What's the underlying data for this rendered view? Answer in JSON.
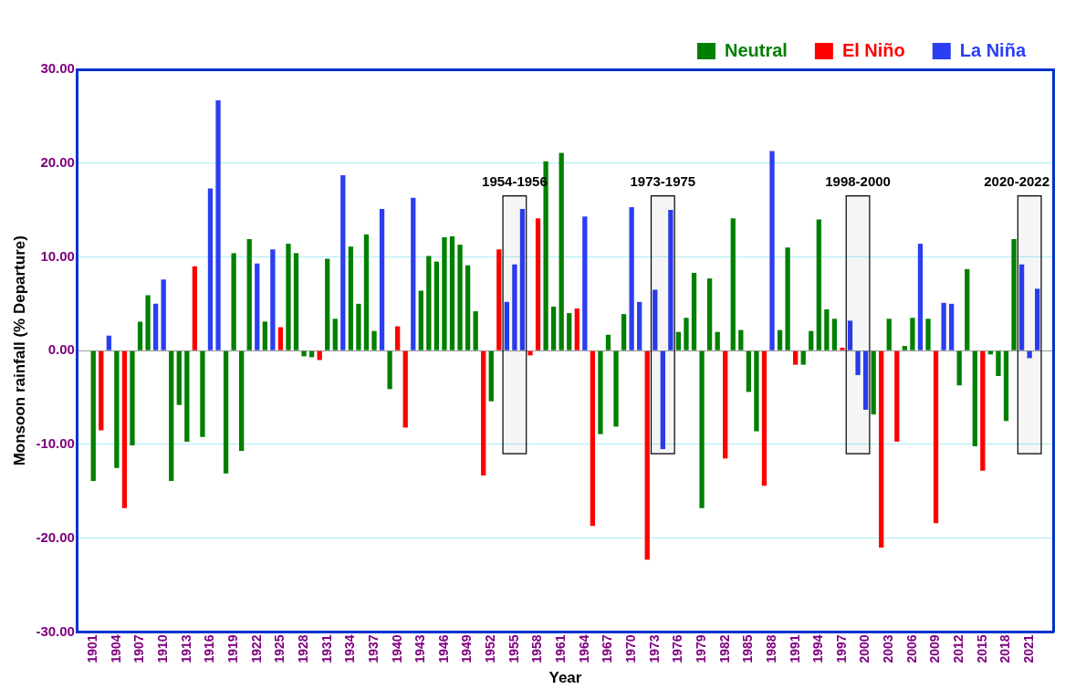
{
  "chart_data": {
    "type": "bar",
    "xlabel": "Year",
    "ylabel": "Monsoon rainfall (% Departure)",
    "x": [
      1901,
      1902,
      1903,
      1904,
      1905,
      1906,
      1907,
      1908,
      1909,
      1910,
      1911,
      1912,
      1913,
      1914,
      1915,
      1916,
      1917,
      1918,
      1919,
      1920,
      1921,
      1922,
      1923,
      1924,
      1925,
      1926,
      1927,
      1928,
      1929,
      1930,
      1931,
      1932,
      1933,
      1934,
      1935,
      1936,
      1937,
      1938,
      1939,
      1940,
      1941,
      1942,
      1943,
      1944,
      1945,
      1946,
      1947,
      1948,
      1949,
      1950,
      1951,
      1952,
      1953,
      1954,
      1955,
      1956,
      1957,
      1958,
      1959,
      1960,
      1961,
      1962,
      1963,
      1964,
      1965,
      1966,
      1967,
      1968,
      1969,
      1970,
      1971,
      1972,
      1973,
      1974,
      1975,
      1976,
      1977,
      1978,
      1979,
      1980,
      1981,
      1982,
      1983,
      1984,
      1985,
      1986,
      1987,
      1988,
      1989,
      1990,
      1991,
      1992,
      1993,
      1994,
      1995,
      1996,
      1997,
      1998,
      1999,
      2000,
      2001,
      2002,
      2003,
      2004,
      2005,
      2006,
      2007,
      2008,
      2009,
      2010,
      2011,
      2012,
      2013,
      2014,
      2015,
      2016,
      2017,
      2018,
      2019,
      2020,
      2021,
      2022
    ],
    "series": [
      {
        "name": "Neutral",
        "color": "#008000",
        "values": [
          -13.9,
          null,
          null,
          -12.5,
          null,
          -10.1,
          3.1,
          5.9,
          null,
          null,
          -13.9,
          -5.8,
          -9.7,
          null,
          -9.2,
          null,
          null,
          -13.1,
          10.4,
          -10.7,
          11.9,
          null,
          3.1,
          null,
          null,
          11.4,
          10.4,
          -0.6,
          -0.7,
          null,
          9.8,
          3.4,
          null,
          11.1,
          5.0,
          12.4,
          2.1,
          null,
          -4.1,
          null,
          null,
          null,
          6.4,
          10.1,
          9.5,
          12.1,
          12.2,
          11.3,
          9.1,
          4.2,
          null,
          -5.4,
          null,
          null,
          null,
          null,
          null,
          null,
          20.2,
          4.7,
          21.1,
          4.0,
          null,
          null,
          null,
          -8.9,
          1.7,
          -8.1,
          3.9,
          null,
          null,
          null,
          null,
          null,
          null,
          2.0,
          3.5,
          8.3,
          -16.8,
          7.7,
          2.0,
          null,
          14.1,
          2.2,
          -4.4,
          -8.6,
          null,
          null,
          2.2,
          11.0,
          null,
          -1.5,
          2.1,
          14.0,
          4.4,
          3.4,
          null,
          null,
          null,
          null,
          -6.8,
          null,
          3.4,
          null,
          0.5,
          3.5,
          null,
          3.4,
          null,
          null,
          null,
          -3.7,
          8.7,
          -10.2,
          null,
          -0.4,
          -2.7,
          -7.5,
          11.9,
          null,
          null,
          null
        ]
      },
      {
        "name": "El Niño",
        "color": "#ff0000",
        "values": [
          null,
          -8.5,
          null,
          null,
          -16.8,
          null,
          null,
          null,
          null,
          null,
          null,
          null,
          null,
          9.0,
          null,
          null,
          null,
          null,
          null,
          null,
          null,
          null,
          null,
          null,
          2.5,
          null,
          null,
          null,
          null,
          -1.0,
          null,
          null,
          null,
          null,
          null,
          null,
          null,
          null,
          null,
          2.6,
          -8.2,
          null,
          null,
          null,
          null,
          null,
          null,
          null,
          null,
          null,
          -13.3,
          null,
          10.8,
          null,
          null,
          null,
          -0.5,
          14.1,
          null,
          null,
          null,
          null,
          4.5,
          null,
          -18.7,
          null,
          null,
          null,
          null,
          null,
          null,
          -22.3,
          null,
          null,
          null,
          null,
          null,
          null,
          null,
          null,
          null,
          -11.5,
          null,
          null,
          null,
          null,
          -14.4,
          null,
          null,
          null,
          -1.5,
          null,
          null,
          null,
          null,
          null,
          0.3,
          null,
          null,
          null,
          null,
          -21.0,
          null,
          -9.7,
          null,
          null,
          null,
          null,
          -18.4,
          null,
          null,
          null,
          null,
          null,
          -12.8,
          null,
          null,
          null,
          null,
          null,
          null,
          null
        ]
      },
      {
        "name": "La Niña",
        "color": "#2b3ef2",
        "values": [
          null,
          null,
          1.6,
          null,
          null,
          null,
          null,
          null,
          5.0,
          7.6,
          null,
          null,
          null,
          null,
          null,
          17.3,
          26.7,
          null,
          null,
          null,
          null,
          9.3,
          null,
          10.8,
          null,
          null,
          null,
          null,
          null,
          null,
          null,
          null,
          18.7,
          null,
          null,
          null,
          null,
          15.1,
          null,
          null,
          null,
          16.3,
          null,
          null,
          null,
          null,
          null,
          null,
          null,
          null,
          null,
          null,
          null,
          5.2,
          9.2,
          15.1,
          null,
          null,
          null,
          null,
          null,
          null,
          null,
          14.3,
          null,
          null,
          null,
          null,
          null,
          15.3,
          5.2,
          null,
          6.5,
          -10.5,
          15.0,
          null,
          null,
          null,
          null,
          null,
          null,
          null,
          null,
          null,
          null,
          null,
          null,
          21.3,
          null,
          null,
          null,
          null,
          null,
          null,
          null,
          null,
          null,
          3.2,
          -2.6,
          -6.3,
          null,
          null,
          null,
          null,
          null,
          null,
          11.4,
          null,
          null,
          5.1,
          5.0,
          null,
          null,
          null,
          null,
          null,
          null,
          null,
          null,
          9.2,
          -0.8,
          6.6
        ]
      }
    ],
    "xlim": [
      1900.5,
      2022.5
    ],
    "xticks": [
      1901,
      1904,
      1907,
      1910,
      1913,
      1916,
      1919,
      1922,
      1925,
      1928,
      1931,
      1934,
      1937,
      1940,
      1943,
      1946,
      1949,
      1952,
      1955,
      1958,
      1961,
      1964,
      1967,
      1970,
      1973,
      1976,
      1979,
      1982,
      1985,
      1988,
      1991,
      1994,
      1997,
      2000,
      2003,
      2006,
      2009,
      2012,
      2015,
      2018,
      2021
    ],
    "ylim": [
      -30,
      30
    ],
    "yticks": [
      {
        "value": -30,
        "label": "-30.00"
      },
      {
        "value": -20,
        "label": "-20.00"
      },
      {
        "value": -10,
        "label": "-10.00"
      },
      {
        "value": 0,
        "label": "0.00"
      },
      {
        "value": 10,
        "label": "10.00"
      },
      {
        "value": 20,
        "label": "20.00"
      },
      {
        "value": 30,
        "label": "30.00"
      }
    ],
    "grid": "y",
    "legend": "top right",
    "bands": [
      {
        "axis": "x",
        "from": 1953.5,
        "to": 1956.5,
        "label": "1954-1956",
        "color": "#000000"
      },
      {
        "axis": "x",
        "from": 1972.5,
        "to": 1975.5,
        "label": "1973-1975",
        "color": "#000000"
      },
      {
        "axis": "x",
        "from": 1997.5,
        "to": 2000.5,
        "label": "1998-2000",
        "color": "#000000"
      },
      {
        "axis": "x",
        "from": 2019.5,
        "to": 2022.5,
        "label": "2020-2022",
        "color": "#000000"
      }
    ]
  }
}
